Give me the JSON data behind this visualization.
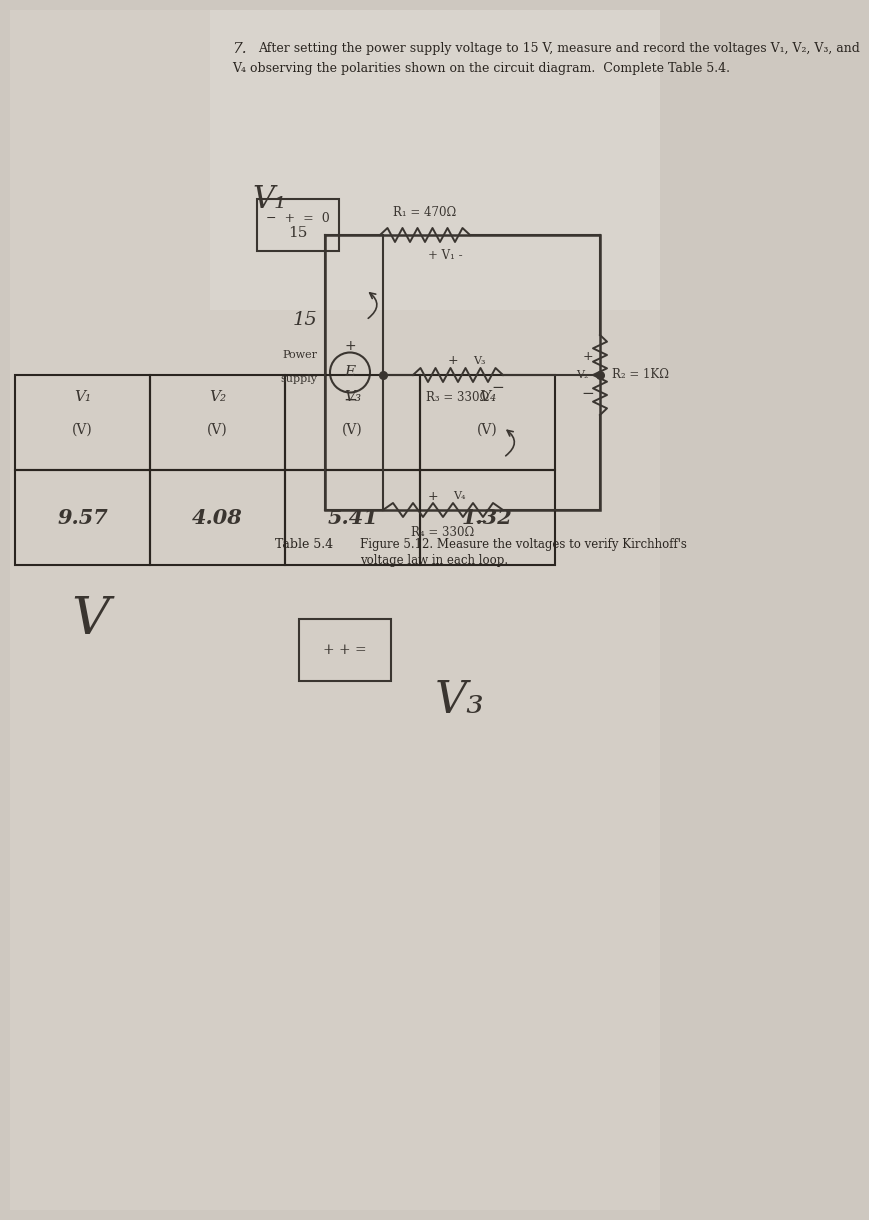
{
  "question_number": "7.",
  "para_line1": "After setting the power supply voltage to 15 V, measure and record the voltages V₁, V₂, V₃, and",
  "para_line2": "V₄ observing the polarities shown on the circuit diagram.  Complete Table 5.4.",
  "figure_caption_line1": "Figure 5.12. Measure the voltages to verify Kirchhoff's",
  "figure_caption_line2": "voltage law in each loop.",
  "table_title": "Table 5.4",
  "table_headers": [
    "V₁",
    "V₂",
    "V₃",
    "V₄"
  ],
  "table_units": [
    "(V)",
    "(V)",
    "(V)",
    "(V)"
  ],
  "table_values": [
    "9.57",
    "4.08",
    "5.41",
    "1.32"
  ],
  "r1_label": "R₁ = 470Ω",
  "r2_label": "R₂ = 1KΩ",
  "r3_label": "R₃ = 330Ω",
  "r4_label": "R₄ = 330Ω",
  "power_label_line1": "Power",
  "power_label_line2": "supply",
  "voltage_source": "15",
  "v1_label": "+ V₁ -",
  "v2_label": "+ V₂ -",
  "v3_label": "+ V₃ -",
  "v4_label": "+ V₄ -",
  "background_color": "#cec8c0",
  "text_color": "#2a2520",
  "handwritten_color": "#3a3530"
}
